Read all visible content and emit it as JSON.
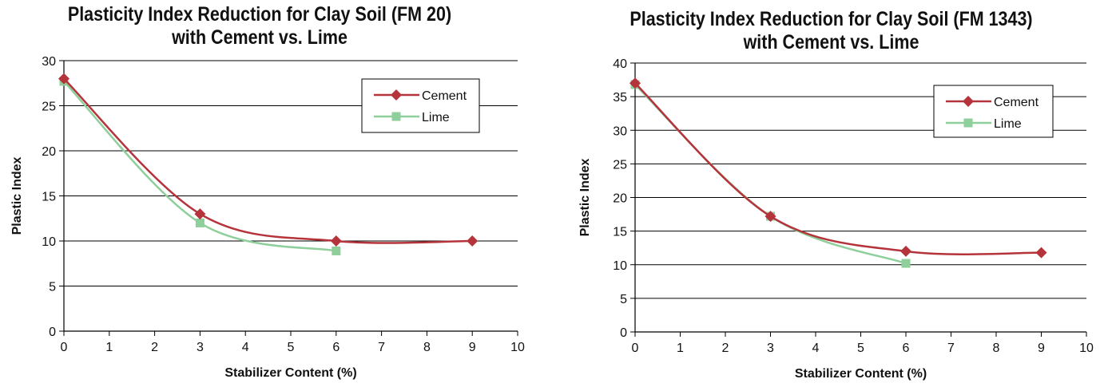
{
  "colors": {
    "cement": "#b5343c",
    "lime": "#8ecf9c",
    "grid": "#000000"
  },
  "chart_data": [
    {
      "type": "line",
      "title_line1": "Plasticity Index Reduction for Clay Soil (FM 20)",
      "title_line2": "with Cement vs. Lime",
      "xlabel": "Stabilizer Content (%)",
      "ylabel": "Plastic Index",
      "xlim": [
        0,
        10
      ],
      "ylim": [
        0,
        30
      ],
      "xticks": [
        0,
        1,
        2,
        3,
        4,
        5,
        6,
        7,
        8,
        9,
        10
      ],
      "yticks": [
        0,
        5,
        10,
        15,
        20,
        25,
        30
      ],
      "grid": "horizontal",
      "legend_position": "top-right",
      "series": [
        {
          "name": "Cement",
          "marker": "diamond",
          "x": [
            0,
            3,
            6,
            9
          ],
          "y": [
            28,
            13,
            10,
            10
          ]
        },
        {
          "name": "Lime",
          "marker": "square",
          "x": [
            0,
            3,
            6
          ],
          "y": [
            27.7,
            12,
            8.9
          ]
        }
      ]
    },
    {
      "type": "line",
      "title_line1": "Plasticity Index Reduction for Clay Soil (FM 1343)",
      "title_line2": "with Cement vs. Lime",
      "xlabel": "Stabilizer Content (%)",
      "ylabel": "Plastic Index",
      "xlim": [
        0,
        10
      ],
      "ylim": [
        0,
        40
      ],
      "xticks": [
        0,
        1,
        2,
        3,
        4,
        5,
        6,
        7,
        8,
        9,
        10
      ],
      "yticks": [
        0,
        5,
        10,
        15,
        20,
        25,
        30,
        35,
        40
      ],
      "grid": "horizontal",
      "legend_position": "top-right",
      "series": [
        {
          "name": "Cement",
          "marker": "diamond",
          "x": [
            0,
            3,
            6,
            9
          ],
          "y": [
            37,
            17.2,
            12,
            11.8
          ]
        },
        {
          "name": "Lime",
          "marker": "square",
          "x": [
            0,
            3,
            6
          ],
          "y": [
            36.8,
            17.2,
            10.2
          ]
        }
      ]
    }
  ]
}
